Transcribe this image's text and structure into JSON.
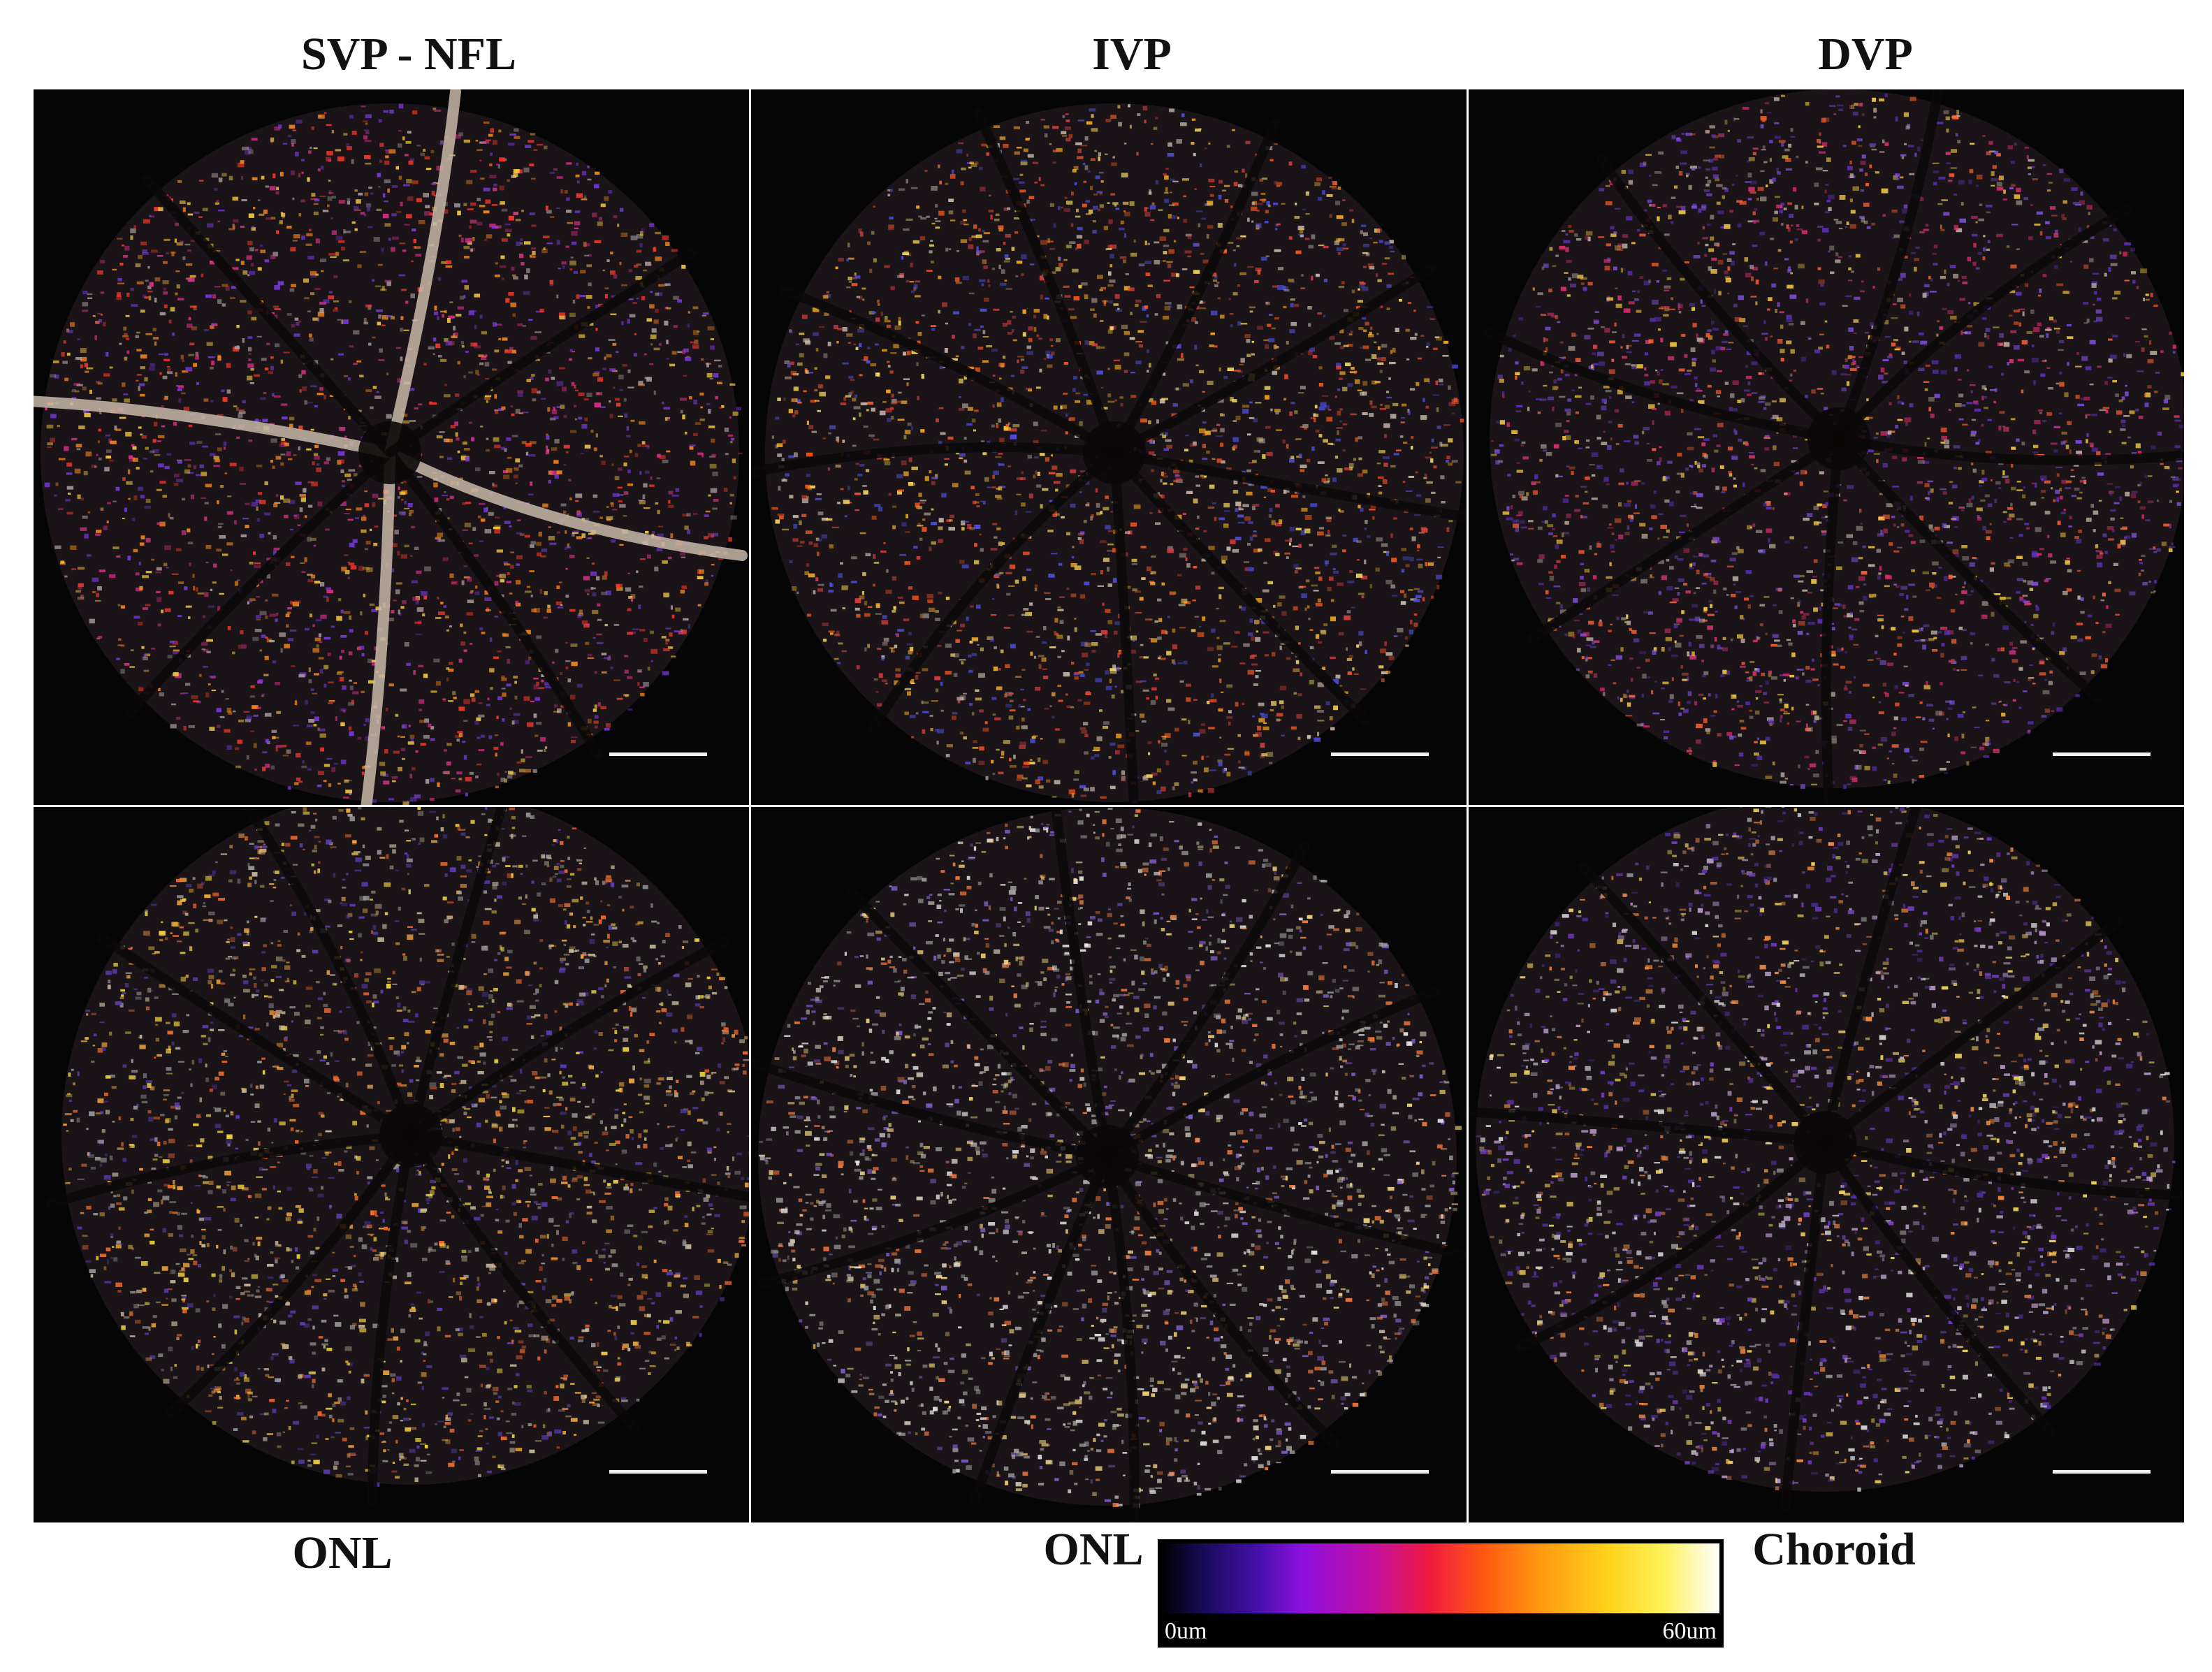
{
  "top_labels": [
    "SVP - NFL",
    "IVP",
    "DVP"
  ],
  "bottom_labels": [
    "ONL",
    "ONL",
    "Choroid"
  ],
  "colorbar": {
    "min_label": "0um",
    "max_label": "60um",
    "colors": [
      "#000000",
      "#1a0b5e",
      "#4a10b0",
      "#8e10e0",
      "#c410a0",
      "#f01a40",
      "#ff5a10",
      "#ff9a10",
      "#ffd21a",
      "#fff25a",
      "#ffffff"
    ]
  },
  "panels": [
    {
      "name": "svp-nfl",
      "palette": [
        "#ff8a1a",
        "#ff3a2a",
        "#e0308a",
        "#7a3ae0",
        "#b0a0a0",
        "#ffd040"
      ]
    },
    {
      "name": "ivp",
      "palette": [
        "#ff5a20",
        "#ffb020",
        "#d0c0b0",
        "#ffe060",
        "#5050e0",
        "#e04040"
      ]
    },
    {
      "name": "dvp",
      "palette": [
        "#8050e0",
        "#ff6030",
        "#c0b0a0",
        "#ffd040",
        "#6030c0",
        "#e03070"
      ]
    },
    {
      "name": "onl-1",
      "palette": [
        "#d0c0a0",
        "#ffe040",
        "#ff7030",
        "#a0a0a0",
        "#6040c0",
        "#ffb040"
      ]
    },
    {
      "name": "onl-2",
      "palette": [
        "#d8d0c0",
        "#a0a0a0",
        "#ffe080",
        "#ff8040",
        "#8060d0",
        "#f0f0f0"
      ]
    },
    {
      "name": "choroid",
      "palette": [
        "#7a40d0",
        "#c0a0d0",
        "#ffe060",
        "#ff9040",
        "#e0e0e0",
        "#5030a0"
      ]
    }
  ]
}
